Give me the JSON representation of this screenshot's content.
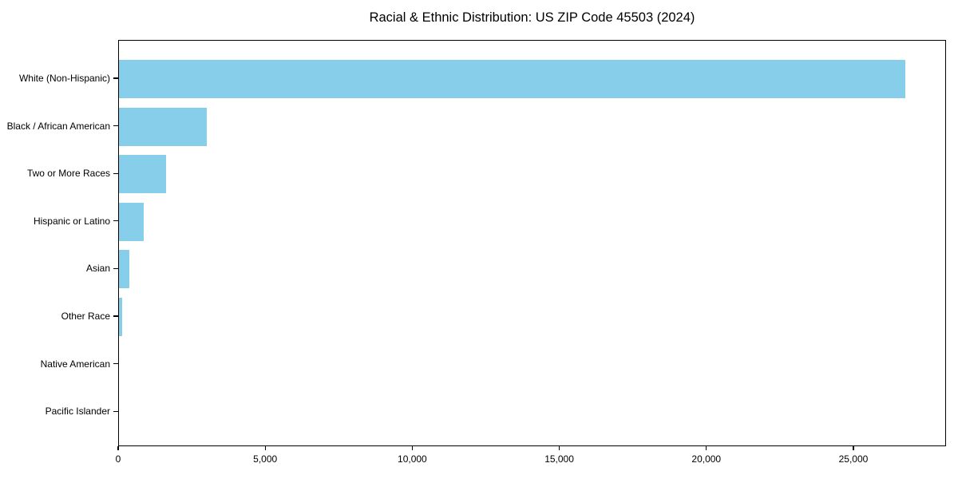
{
  "chart_data": {
    "type": "bar",
    "orientation": "horizontal",
    "title": "Racial & Ethnic Distribution: US ZIP Code 45503 (2024)",
    "categories": [
      "White (Non-Hispanic)",
      "Black / African American",
      "Two or More Races",
      "Hispanic or Latino",
      "Asian",
      "Other Race",
      "Native American",
      "Pacific Islander"
    ],
    "values": [
      26800,
      3000,
      1600,
      840,
      350,
      120,
      0,
      0
    ],
    "bar_color": "#87CEEB",
    "xlabel": "",
    "ylabel": "",
    "xlim": [
      0,
      28150
    ],
    "x_ticks": [
      0,
      5000,
      10000,
      15000,
      20000,
      25000
    ],
    "x_tick_labels": [
      "0",
      "5,000",
      "10,000",
      "15,000",
      "20,000",
      "25,000"
    ],
    "grid": false,
    "legend": false,
    "background_color": "#ffffff",
    "text_color": "#000000"
  }
}
